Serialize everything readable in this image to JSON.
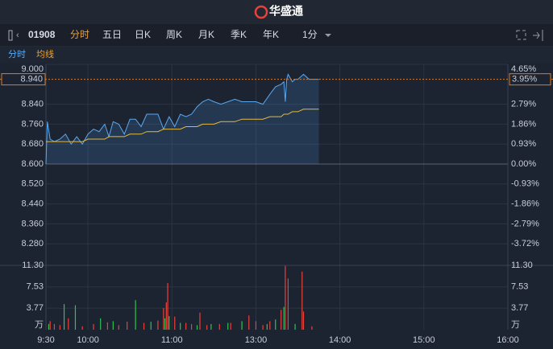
{
  "header": {
    "logo_text": "华盛通"
  },
  "toolbar": {
    "code": "01908",
    "tabs": [
      "分时",
      "五日",
      "日K",
      "周K",
      "月K",
      "季K",
      "年K"
    ],
    "interval": "1分"
  },
  "chart_data": [
    {
      "type": "line",
      "x": [
        0,
        1,
        3,
        6,
        10,
        14,
        18,
        22,
        26,
        30,
        34,
        38,
        42,
        45,
        48,
        52,
        56,
        60,
        64,
        68,
        72,
        76,
        80,
        84,
        88,
        92,
        96,
        100,
        104,
        108,
        112,
        116,
        120,
        125,
        130,
        135,
        140,
        145,
        150,
        155,
        160,
        164,
        168,
        170,
        171,
        172,
        173,
        176,
        178,
        180,
        184,
        188,
        192,
        195
      ],
      "series": [
        {
          "name": "分时",
          "color": "#5aa9f0",
          "values": [
            8.6,
            8.77,
            8.7,
            8.69,
            8.7,
            8.72,
            8.68,
            8.71,
            8.68,
            8.72,
            8.74,
            8.73,
            8.76,
            8.71,
            8.77,
            8.76,
            8.72,
            8.78,
            8.78,
            8.75,
            8.8,
            8.8,
            8.8,
            8.74,
            8.79,
            8.75,
            8.8,
            8.79,
            8.8,
            8.83,
            8.85,
            8.86,
            8.85,
            8.84,
            8.85,
            8.86,
            8.85,
            8.85,
            8.85,
            8.84,
            8.88,
            8.91,
            8.92,
            8.93,
            8.85,
            8.94,
            8.96,
            8.93,
            8.94,
            8.94,
            8.96,
            8.94,
            8.94,
            8.94
          ]
        },
        {
          "name": "均线",
          "color": "#e8b93a",
          "values": [
            8.69,
            8.69,
            8.69,
            8.69,
            8.69,
            8.69,
            8.69,
            8.69,
            8.69,
            8.7,
            8.7,
            8.7,
            8.7,
            8.71,
            8.71,
            8.71,
            8.71,
            8.72,
            8.72,
            8.72,
            8.73,
            8.73,
            8.73,
            8.74,
            8.74,
            8.74,
            8.74,
            8.75,
            8.75,
            8.75,
            8.76,
            8.76,
            8.76,
            8.77,
            8.77,
            8.77,
            8.78,
            8.78,
            8.78,
            8.78,
            8.79,
            8.79,
            8.79,
            8.8,
            8.8,
            8.8,
            8.8,
            8.81,
            8.81,
            8.81,
            8.82,
            8.82,
            8.82,
            8.82
          ]
        }
      ],
      "xlim": [
        0,
        330
      ],
      "xticks": [
        {
          "value": 0,
          "label": "9:30"
        },
        {
          "value": 30,
          "label": "10:00"
        },
        {
          "value": 90,
          "label": "11:00"
        },
        {
          "value": 150,
          "label": "13:00"
        },
        {
          "value": 210,
          "label": "14:00"
        },
        {
          "value": 270,
          "label": "15:00"
        },
        {
          "value": 330,
          "label": "16:00"
        }
      ],
      "ylim": [
        8.2,
        9.0
      ],
      "yticks": [
        {
          "value": 9.0,
          "label": "9.000"
        },
        {
          "value": 8.84,
          "label": "8.840"
        },
        {
          "value": 8.76,
          "label": "8.760"
        },
        {
          "value": 8.68,
          "label": "8.680"
        },
        {
          "value": 8.6,
          "label": "8.600"
        },
        {
          "value": 8.52,
          "label": "8.520"
        },
        {
          "value": 8.44,
          "label": "8.440"
        },
        {
          "value": 8.36,
          "label": "8.360"
        },
        {
          "value": 8.28,
          "label": "8.280"
        }
      ],
      "y2lim": [
        -4.65,
        4.65
      ],
      "y2ticks": [
        {
          "value": 4.65,
          "label": "4.65%"
        },
        {
          "value": 2.79,
          "label": "2.79%"
        },
        {
          "value": 1.86,
          "label": "1.86%"
        },
        {
          "value": 0.93,
          "label": "0.93%"
        },
        {
          "value": 0,
          "label": "0.00%"
        },
        {
          "value": -0.93,
          "label": "-0.93%"
        },
        {
          "value": -1.86,
          "label": "-1.86%"
        },
        {
          "value": -2.79,
          "label": "-2.79%"
        },
        {
          "value": -3.72,
          "label": "-3.72%"
        }
      ],
      "current_price": {
        "value": 8.94,
        "label": "8.940"
      },
      "current_change": {
        "value": 3.95,
        "label": "3.95%"
      }
    },
    {
      "type": "bar",
      "xlim": [
        0,
        330
      ],
      "ylim": [
        0,
        11.3
      ],
      "yticks": [
        {
          "value": 11.3,
          "label": "11.30"
        },
        7.53,
        3.77
      ],
      "unit": "万",
      "series": [
        {
          "color": "#e8413a",
          "x": [
            3,
            6,
            10,
            16,
            26,
            34,
            44,
            52,
            58,
            70,
            80,
            84,
            86,
            87,
            92,
            100,
            104,
            110,
            115,
            124,
            132,
            145,
            150,
            155,
            160,
            168,
            171,
            173,
            183,
            184,
            190
          ],
          "values": [
            1.5,
            1.0,
            0.8,
            2.0,
            0.6,
            1.0,
            1.3,
            0.8,
            1.4,
            1.2,
            1.6,
            3.8,
            4.8,
            8.2,
            2.3,
            1.2,
            1.0,
            3.0,
            0.8,
            1.0,
            1.2,
            2.5,
            1.5,
            0.8,
            1.5,
            3.5,
            11.2,
            9.0,
            10.2,
            3.2,
            0.6
          ]
        },
        {
          "color": "#2fc152",
          "x": [
            2,
            13,
            21,
            39,
            48,
            64,
            75,
            85,
            88,
            96,
            108,
            118,
            130,
            140,
            158,
            164,
            170,
            178
          ],
          "values": [
            1.0,
            4.5,
            4.3,
            2.0,
            1.5,
            5.2,
            1.4,
            2.0,
            2.4,
            1.2,
            0.8,
            1.0,
            1.2,
            1.5,
            1.0,
            1.8,
            4.0,
            1.0
          ]
        }
      ]
    }
  ]
}
